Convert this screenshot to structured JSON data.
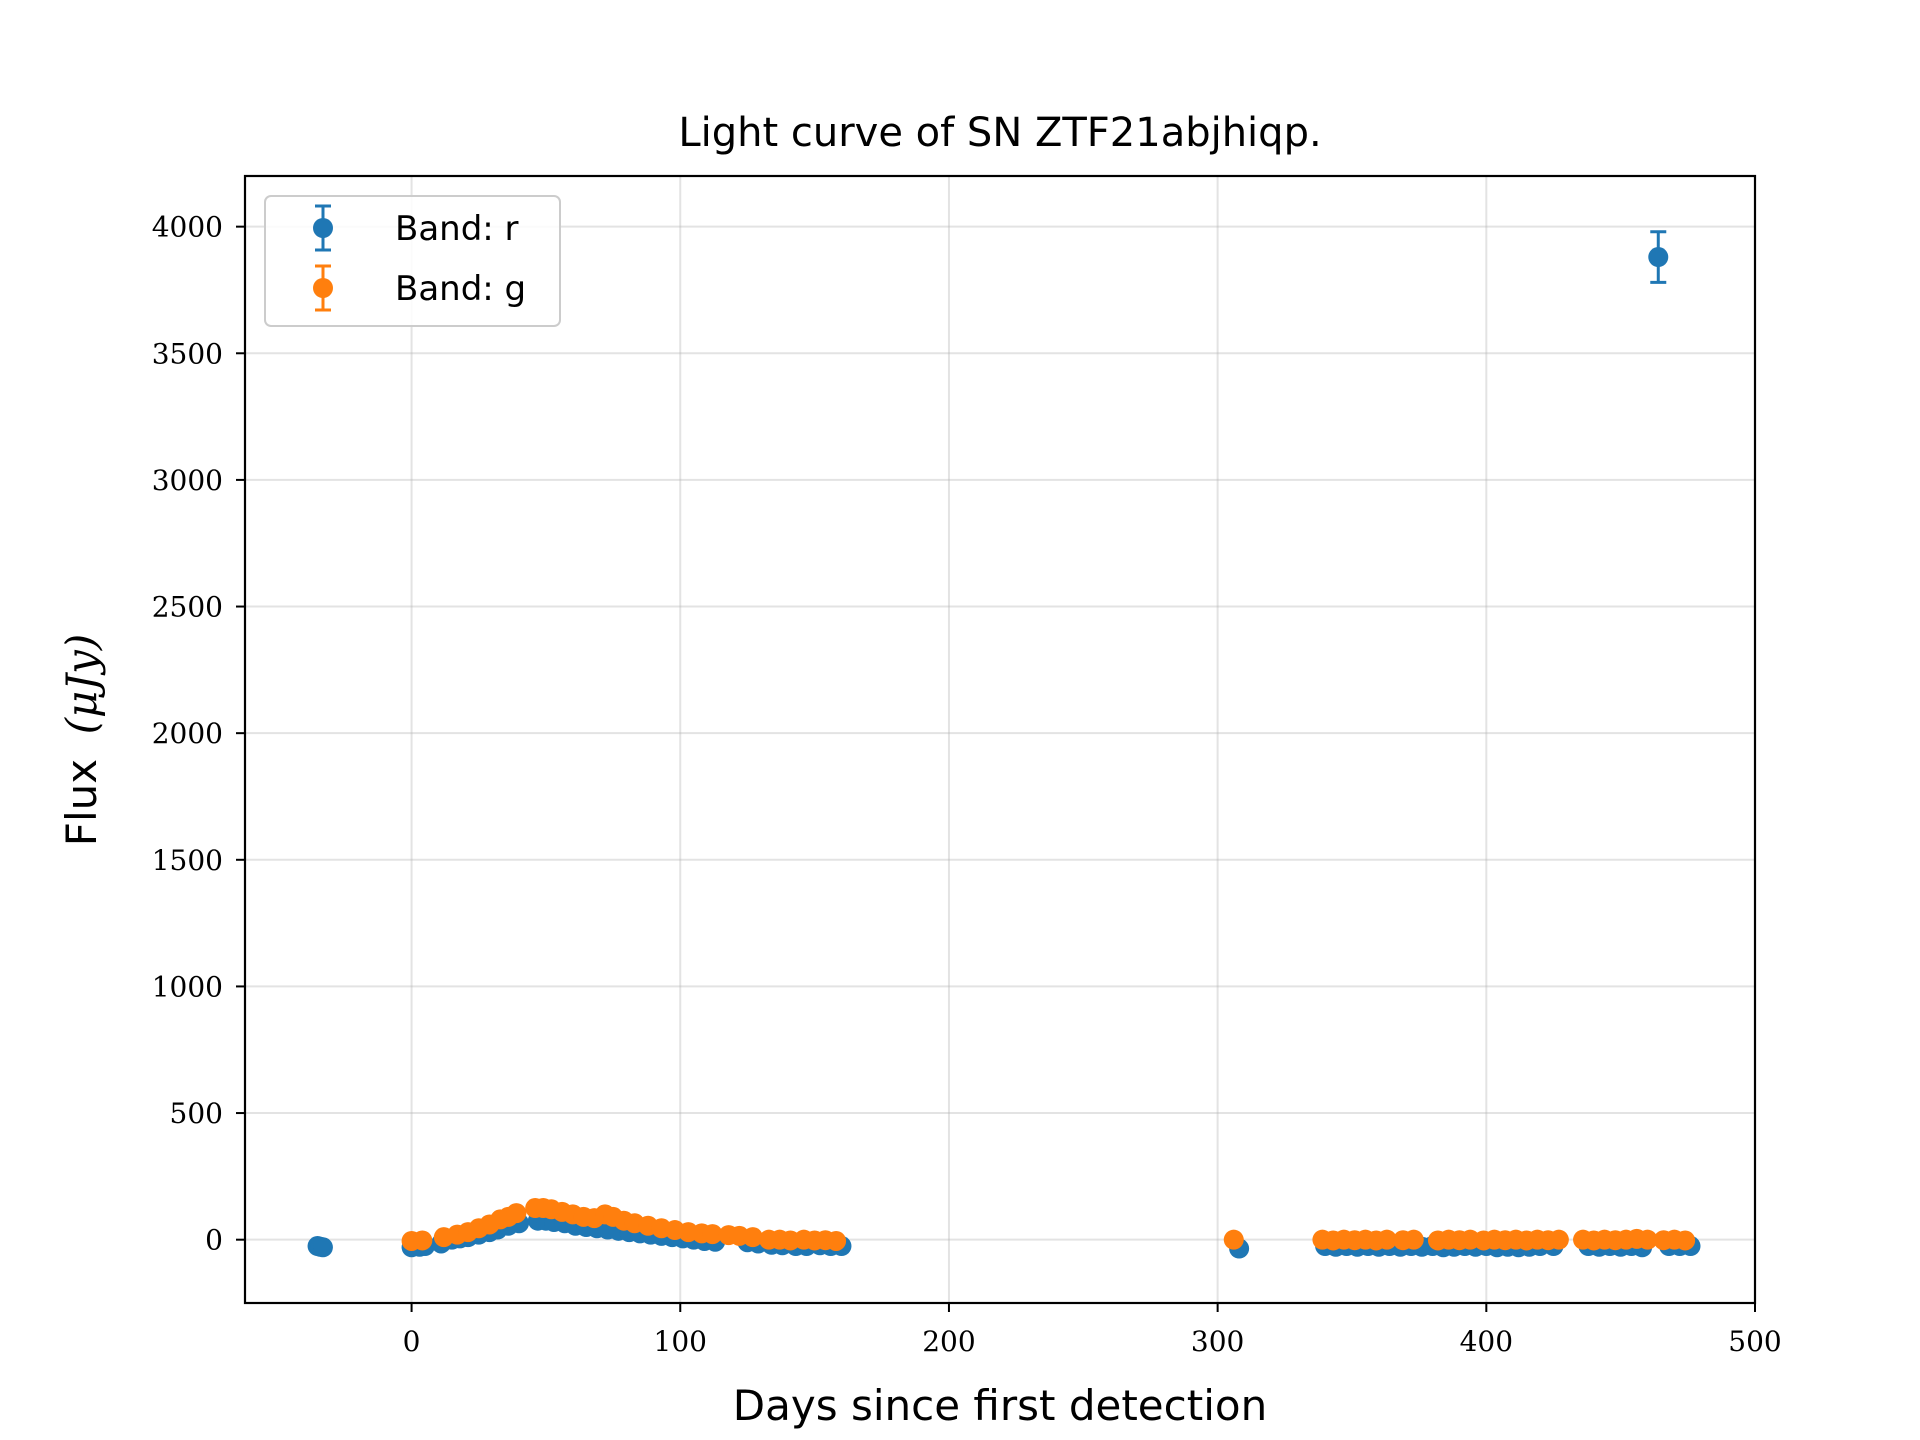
{
  "chart_data": {
    "type": "scatter",
    "title": "Light curve of SN ZTF21abjhiqp.",
    "xlabel": "Days since first detection",
    "ylabel": "Flux",
    "ylabel_unit": "(μJy)",
    "xlim": [
      -62,
      500
    ],
    "ylim": [
      -250,
      4200
    ],
    "xticks": [
      0,
      100,
      200,
      300,
      400,
      500
    ],
    "yticks": [
      0,
      500,
      1000,
      1500,
      2000,
      2500,
      3000,
      3500,
      4000
    ],
    "grid": true,
    "legend_position": "top-left",
    "series": [
      {
        "name": "Band: r",
        "color": "#1f77b4",
        "points": [
          [
            -35,
            -25,
            10
          ],
          [
            -34,
            -28,
            10
          ],
          [
            -33,
            -30,
            10
          ],
          [
            0,
            -30,
            10
          ],
          [
            3,
            -28,
            10
          ],
          [
            5,
            -25,
            10
          ],
          [
            11,
            -15,
            10
          ],
          [
            15,
            0,
            10
          ],
          [
            18,
            5,
            10
          ],
          [
            21,
            10,
            10
          ],
          [
            25,
            20,
            10
          ],
          [
            29,
            30,
            10
          ],
          [
            32,
            40,
            10
          ],
          [
            36,
            55,
            10
          ],
          [
            40,
            65,
            10
          ],
          [
            47,
            75,
            10
          ],
          [
            50,
            75,
            10
          ],
          [
            53,
            70,
            10
          ],
          [
            57,
            65,
            10
          ],
          [
            61,
            55,
            10
          ],
          [
            65,
            50,
            10
          ],
          [
            69,
            45,
            10
          ],
          [
            73,
            40,
            10
          ],
          [
            77,
            35,
            10
          ],
          [
            81,
            30,
            10
          ],
          [
            85,
            25,
            10
          ],
          [
            89,
            20,
            10
          ],
          [
            93,
            15,
            10
          ],
          [
            97,
            10,
            10
          ],
          [
            101,
            5,
            10
          ],
          [
            105,
            0,
            10
          ],
          [
            109,
            -5,
            10
          ],
          [
            113,
            -8,
            10
          ],
          [
            125,
            -10,
            10
          ],
          [
            129,
            -15,
            10
          ],
          [
            134,
            -20,
            10
          ],
          [
            138,
            -22,
            10
          ],
          [
            143,
            -25,
            10
          ],
          [
            147,
            -25,
            10
          ],
          [
            152,
            -22,
            10
          ],
          [
            156,
            -25,
            10
          ],
          [
            160,
            -25,
            10
          ],
          [
            308,
            -35,
            10
          ],
          [
            340,
            -25,
            10
          ],
          [
            344,
            -28,
            10
          ],
          [
            348,
            -25,
            10
          ],
          [
            352,
            -28,
            10
          ],
          [
            356,
            -25,
            10
          ],
          [
            360,
            -28,
            10
          ],
          [
            364,
            -25,
            10
          ],
          [
            368,
            -28,
            10
          ],
          [
            372,
            -25,
            10
          ],
          [
            376,
            -28,
            10
          ],
          [
            380,
            -25,
            10
          ],
          [
            384,
            -30,
            10
          ],
          [
            388,
            -28,
            10
          ],
          [
            392,
            -25,
            10
          ],
          [
            396,
            -28,
            10
          ],
          [
            400,
            -25,
            10
          ],
          [
            404,
            -30,
            10
          ],
          [
            408,
            -28,
            10
          ],
          [
            412,
            -30,
            10
          ],
          [
            416,
            -28,
            10
          ],
          [
            420,
            -25,
            10
          ],
          [
            425,
            -25,
            10
          ],
          [
            438,
            -25,
            10
          ],
          [
            442,
            -28,
            10
          ],
          [
            446,
            -25,
            10
          ],
          [
            450,
            -28,
            10
          ],
          [
            454,
            -25,
            10
          ],
          [
            458,
            -30,
            10
          ],
          [
            464,
            3880,
            100
          ],
          [
            468,
            -25,
            10
          ],
          [
            472,
            -25,
            10
          ],
          [
            476,
            -25,
            10
          ]
        ]
      },
      {
        "name": "Band: g",
        "color": "#ff7f0e",
        "points": [
          [
            0,
            -5,
            10
          ],
          [
            4,
            -3,
            10
          ],
          [
            12,
            10,
            10
          ],
          [
            17,
            20,
            10
          ],
          [
            21,
            30,
            10
          ],
          [
            25,
            45,
            10
          ],
          [
            29,
            60,
            10
          ],
          [
            33,
            80,
            10
          ],
          [
            36,
            90,
            10
          ],
          [
            39,
            105,
            10
          ],
          [
            46,
            125,
            10
          ],
          [
            49,
            125,
            10
          ],
          [
            52,
            120,
            10
          ],
          [
            56,
            110,
            10
          ],
          [
            60,
            100,
            10
          ],
          [
            64,
            90,
            10
          ],
          [
            68,
            85,
            10
          ],
          [
            72,
            100,
            10
          ],
          [
            75,
            90,
            10
          ],
          [
            79,
            75,
            10
          ],
          [
            83,
            65,
            10
          ],
          [
            88,
            55,
            10
          ],
          [
            93,
            45,
            10
          ],
          [
            98,
            38,
            10
          ],
          [
            103,
            30,
            10
          ],
          [
            108,
            25,
            10
          ],
          [
            112,
            22,
            10
          ],
          [
            118,
            18,
            10
          ],
          [
            122,
            15,
            10
          ],
          [
            127,
            10,
            10
          ],
          [
            133,
            0,
            10
          ],
          [
            137,
            0,
            10
          ],
          [
            141,
            -3,
            10
          ],
          [
            146,
            0,
            10
          ],
          [
            150,
            -3,
            10
          ],
          [
            154,
            -2,
            10
          ],
          [
            158,
            -5,
            10
          ],
          [
            306,
            0,
            10
          ],
          [
            339,
            0,
            10
          ],
          [
            343,
            -3,
            10
          ],
          [
            347,
            0,
            10
          ],
          [
            351,
            -2,
            10
          ],
          [
            355,
            0,
            10
          ],
          [
            359,
            -3,
            10
          ],
          [
            363,
            0,
            10
          ],
          [
            369,
            -2,
            10
          ],
          [
            373,
            0,
            10
          ],
          [
            382,
            -3,
            10
          ],
          [
            386,
            0,
            10
          ],
          [
            390,
            -2,
            10
          ],
          [
            394,
            0,
            10
          ],
          [
            399,
            -3,
            10
          ],
          [
            403,
            0,
            10
          ],
          [
            407,
            -2,
            10
          ],
          [
            411,
            0,
            10
          ],
          [
            415,
            -3,
            10
          ],
          [
            419,
            0,
            10
          ],
          [
            423,
            -2,
            10
          ],
          [
            427,
            0,
            10
          ],
          [
            436,
            0,
            10
          ],
          [
            440,
            -3,
            10
          ],
          [
            444,
            0,
            10
          ],
          [
            448,
            -2,
            10
          ],
          [
            452,
            0,
            10
          ],
          [
            456,
            3,
            10
          ],
          [
            460,
            0,
            10
          ],
          [
            466,
            -2,
            10
          ],
          [
            470,
            0,
            10
          ],
          [
            474,
            -3,
            10
          ]
        ]
      }
    ]
  }
}
